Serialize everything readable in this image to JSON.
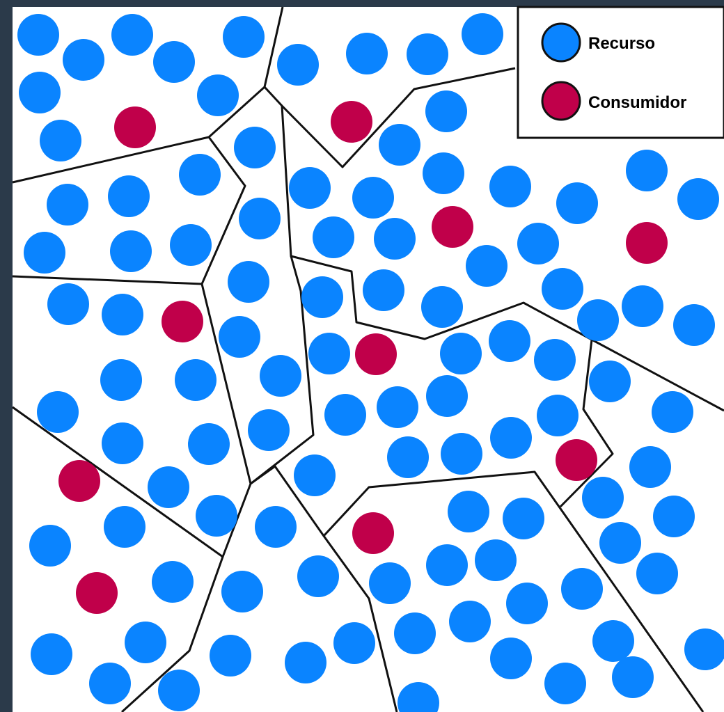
{
  "colors": {
    "frame": "#2b3a4a",
    "background": "#ffffff",
    "resource": "#0a84ff",
    "consumer": "#c0004a",
    "boundary": "#111111"
  },
  "legend": {
    "resource_label": "Recurso",
    "consumer_label": "Consumidor"
  },
  "icons": {
    "resource": "resource-dot-icon",
    "consumer": "consumer-dot-icon"
  }
}
